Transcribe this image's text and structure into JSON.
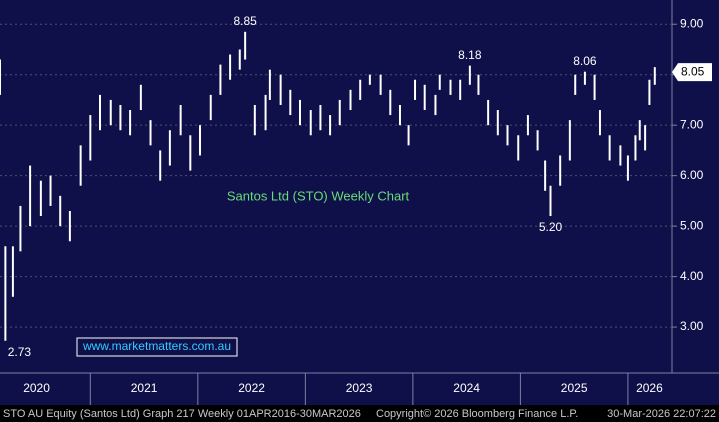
{
  "chart_data": {
    "type": "range-bar",
    "title": "Santos Ltd (STO) Weekly Chart",
    "watermark": "www.marketmatters.com.au",
    "footer": {
      "left": "STO AU Equity (Santos Ltd) Graph 217 Weekly 01APR2016-30MAR2026",
      "middle": "Copyright© 2026 Bloomberg Finance L.P.",
      "right": "30-Mar-2026 22:07:22"
    },
    "color": "#ffffff",
    "x": [
      2020.16,
      2020.21,
      2020.28,
      2020.35,
      2020.44,
      2020.54,
      2020.63,
      2020.72,
      2020.81,
      2020.91,
      2021.0,
      2021.09,
      2021.19,
      2021.28,
      2021.37,
      2021.47,
      2021.56,
      2021.65,
      2021.74,
      2021.84,
      2021.93,
      2022.02,
      2022.12,
      2022.21,
      2022.3,
      2022.39,
      2022.44,
      2022.53,
      2022.63,
      2022.67,
      2022.77,
      2022.86,
      2022.95,
      2023.05,
      2023.14,
      2023.23,
      2023.32,
      2023.42,
      2023.51,
      2023.6,
      2023.7,
      2023.79,
      2023.88,
      2023.96,
      2024.02,
      2024.11,
      2024.21,
      2024.25,
      2024.35,
      2024.44,
      2024.53,
      2024.61,
      2024.7,
      2024.79,
      2024.88,
      2024.98,
      2025.07,
      2025.16,
      2025.23,
      2025.28,
      2025.37,
      2025.46,
      2025.51,
      2025.6,
      2025.69,
      2025.74,
      2025.83,
      2025.93,
      2026.0,
      2026.07,
      2026.11,
      2026.16,
      2026.2,
      2026.25
    ],
    "low": [
      7.6,
      2.73,
      3.6,
      4.5,
      5.0,
      5.2,
      5.4,
      5.0,
      4.7,
      5.8,
      6.3,
      6.9,
      7.0,
      6.9,
      6.8,
      7.3,
      6.6,
      5.9,
      6.2,
      6.8,
      6.1,
      6.4,
      7.1,
      7.6,
      7.9,
      8.1,
      8.3,
      6.8,
      6.9,
      7.5,
      7.4,
      7.2,
      7.0,
      6.8,
      6.9,
      6.8,
      7.0,
      7.3,
      7.5,
      7.8,
      7.6,
      7.2,
      7.0,
      6.6,
      7.5,
      7.3,
      7.2,
      7.7,
      7.6,
      7.5,
      7.8,
      7.6,
      7.0,
      6.8,
      6.6,
      6.3,
      6.8,
      6.5,
      5.7,
      5.2,
      5.8,
      6.3,
      7.6,
      7.8,
      7.5,
      6.8,
      6.3,
      6.2,
      5.9,
      6.3,
      6.7,
      6.5,
      7.4,
      7.8
    ],
    "high": [
      8.3,
      4.6,
      4.6,
      5.4,
      6.2,
      5.9,
      6.0,
      5.6,
      5.3,
      6.6,
      7.2,
      7.6,
      7.5,
      7.4,
      7.3,
      7.8,
      7.1,
      6.5,
      6.9,
      7.4,
      6.8,
      7.0,
      7.6,
      8.2,
      8.4,
      8.5,
      8.85,
      7.4,
      7.6,
      8.1,
      8.0,
      7.7,
      7.5,
      7.3,
      7.4,
      7.2,
      7.5,
      7.7,
      7.9,
      8.0,
      8.0,
      7.7,
      7.4,
      7.0,
      7.9,
      7.8,
      7.6,
      8.0,
      7.9,
      7.9,
      8.18,
      8.0,
      7.5,
      7.3,
      7.0,
      6.8,
      7.2,
      6.9,
      6.3,
      5.8,
      6.4,
      7.1,
      8.0,
      8.06,
      8.0,
      7.3,
      6.8,
      6.6,
      6.4,
      6.8,
      7.1,
      7.0,
      7.9,
      8.15
    ],
    "annotations": [
      {
        "x": 2022.44,
        "value": 8.85,
        "label": "8.85"
      },
      {
        "x": 2024.53,
        "value": 8.18,
        "label": "8.18"
      },
      {
        "x": 2025.6,
        "value": 8.06,
        "label": "8.06"
      },
      {
        "x": 2025.28,
        "value": 5.2,
        "label": "5.20"
      },
      {
        "x": 2020.21,
        "value": 2.73,
        "label": "2.73"
      }
    ],
    "last_price": {
      "value": 8.05,
      "label": "8.05"
    },
    "xlim": [
      2020.16,
      2026.41
    ],
    "xticks": [
      {
        "value": 2020.5,
        "label": "2020"
      },
      {
        "value": 2021.5,
        "label": "2021"
      },
      {
        "value": 2022.5,
        "label": "2022"
      },
      {
        "value": 2023.5,
        "label": "2023"
      },
      {
        "value": 2024.5,
        "label": "2024"
      },
      {
        "value": 2025.5,
        "label": "2025"
      },
      {
        "value": 2026.2,
        "label": "2026"
      }
    ],
    "year_bounds": [
      2021,
      2022,
      2023,
      2024,
      2025,
      2026
    ],
    "ylim": [
      2.09,
      9.48
    ],
    "yticks": [
      {
        "value": 3,
        "label": "3.00"
      },
      {
        "value": 4,
        "label": "4.00"
      },
      {
        "value": 5,
        "label": "5.00"
      },
      {
        "value": 6,
        "label": "6.00"
      },
      {
        "value": 7,
        "label": "7.00"
      },
      {
        "value": 8,
        "label": "8.00"
      },
      {
        "value": 9,
        "label": "9.00"
      }
    ],
    "grid": true
  }
}
